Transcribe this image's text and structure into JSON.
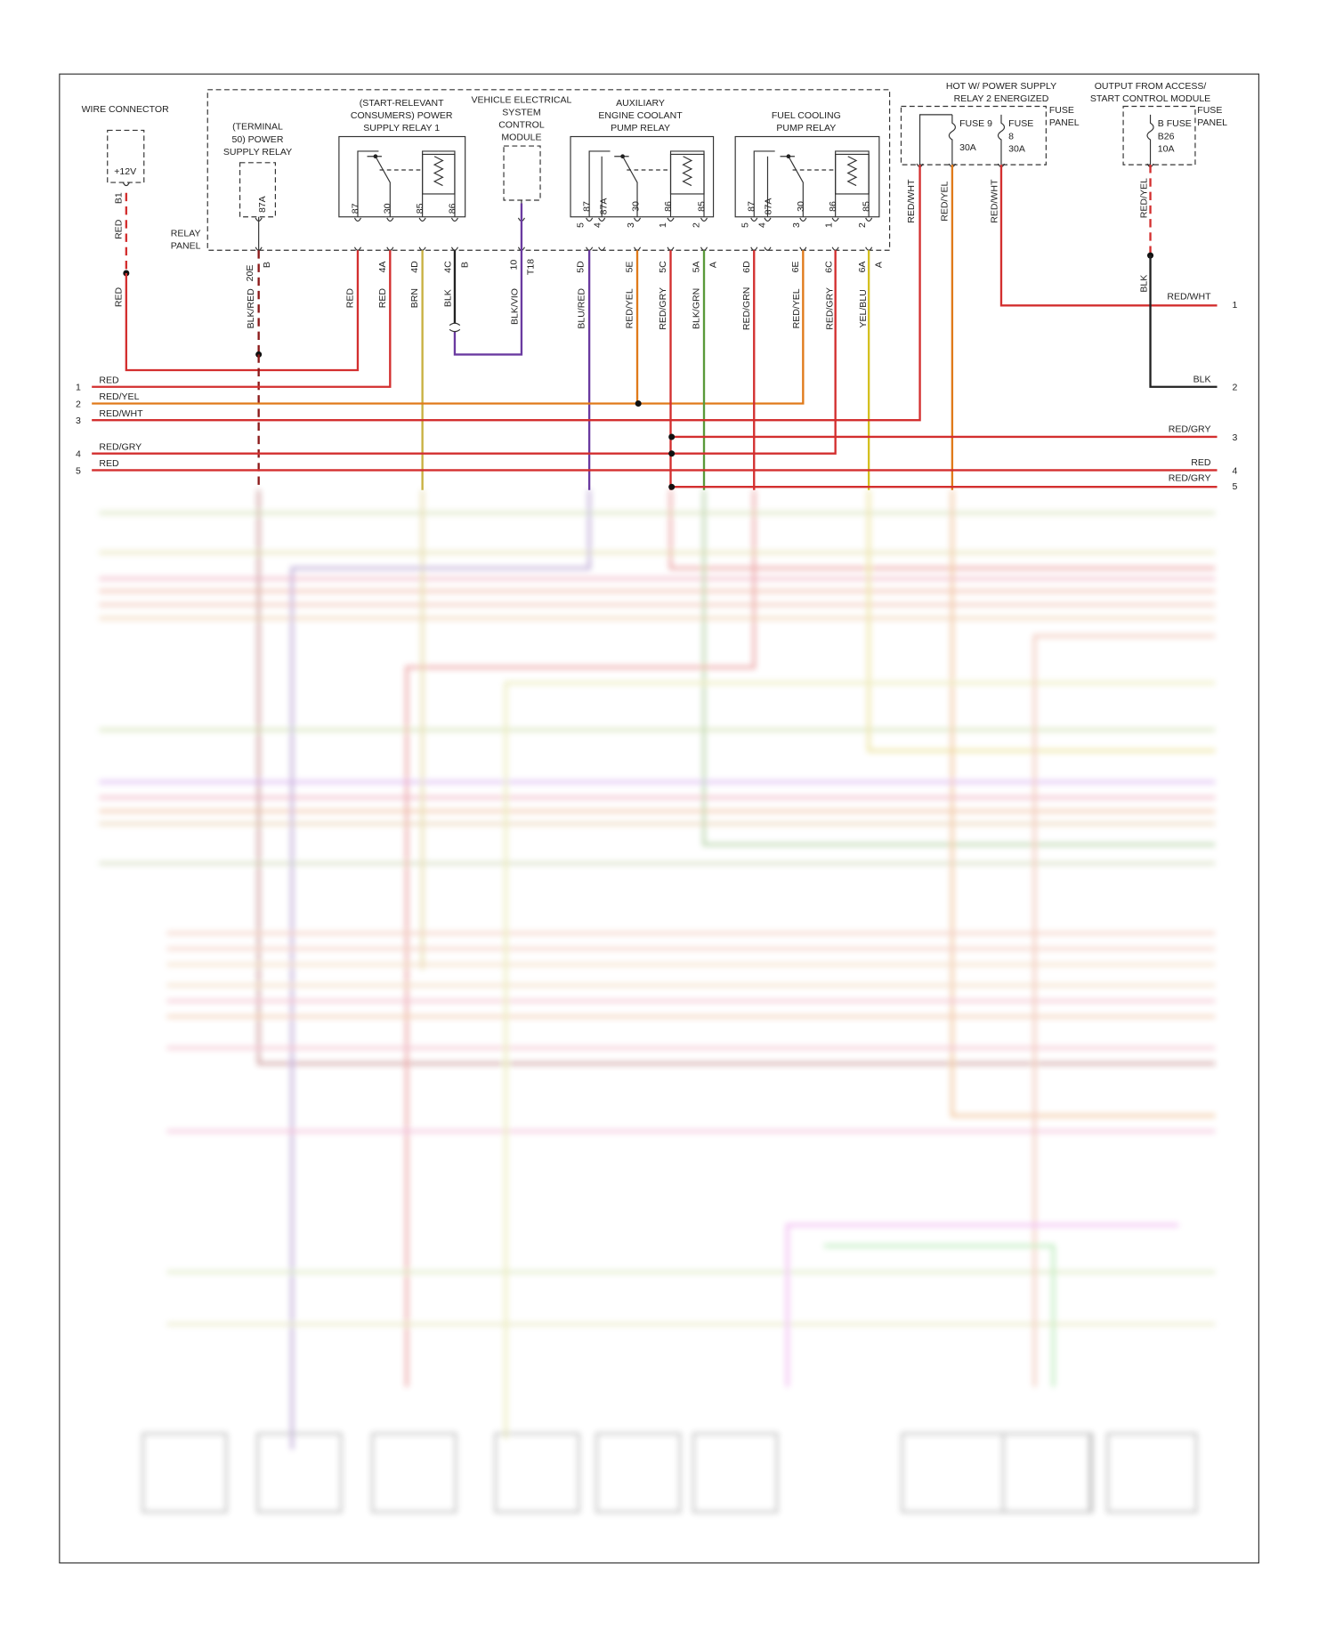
{
  "wire_connector": {
    "title": "WIRE CONNECTOR",
    "label": "+12V",
    "pin": "B1",
    "wires": [
      "RED",
      "RED"
    ]
  },
  "terminal_50_relay": {
    "title": [
      "(TERMINAL",
      "50) POWER",
      "SUPPLY RELAY"
    ],
    "pin": "87A",
    "connector": [
      "20E",
      "B"
    ],
    "wire": "BLK/RED"
  },
  "relay_panel": [
    "RELAY",
    "PANEL"
  ],
  "power_supply_relay_1": {
    "title": [
      "(START-RELEVANT",
      "CONSUMERS) POWER",
      "SUPPLY RELAY 1"
    ],
    "pins": [
      "87",
      "30",
      "85",
      "86"
    ],
    "connector": [
      "4A",
      "4D",
      "4C",
      "B"
    ],
    "wires": [
      "RED",
      "RED",
      "BRN",
      "BLK"
    ]
  },
  "vescm": {
    "title": [
      "VEHICLE ELECTRICAL",
      "SYSTEM",
      "CONTROL",
      "MODULE"
    ],
    "connector": [
      "10",
      "T18"
    ],
    "wire": "BLK/VIO"
  },
  "aux_coolant_relay": {
    "title": [
      "AUXILIARY",
      "ENGINE COOLANT",
      "PUMP RELAY"
    ],
    "pin_numbers": [
      "5",
      "4",
      "3",
      "1",
      "2"
    ],
    "pins": [
      "87",
      "87A",
      "30",
      "86",
      "85"
    ],
    "connector": [
      "5D",
      "5E",
      "5C",
      "5A",
      "A"
    ],
    "wires": [
      "BLU/RED",
      "RED/YEL",
      "RED/GRY",
      "BLK/GRN"
    ]
  },
  "fuel_cooling_relay": {
    "title": [
      "FUEL COOLING",
      "PUMP RELAY"
    ],
    "pin_numbers": [
      "5",
      "4",
      "3",
      "1",
      "2"
    ],
    "pins": [
      "87",
      "87A",
      "30",
      "86",
      "85"
    ],
    "connector": [
      "6D",
      "6E",
      "6C",
      "6A",
      "A"
    ],
    "wires": [
      "RED/GRN",
      "RED/YEL",
      "RED/GRY",
      "YEL/BLU"
    ]
  },
  "power_supply_relay_2": {
    "title": [
      "HOT W/ POWER SUPPLY",
      "RELAY 2 ENERGIZED"
    ],
    "panel": [
      "FUSE",
      "PANEL"
    ],
    "fuses": [
      {
        "name": [
          "FUSE 9"
        ],
        "rating": "30A"
      },
      {
        "name": [
          "FUSE",
          "8"
        ],
        "rating": "30A"
      }
    ],
    "wires": [
      "RED/WHT",
      "RED/YEL",
      "RED/WHT"
    ]
  },
  "access_module": {
    "title": [
      "OUTPUT FROM ACCESS/",
      "START CONTROL MODULE"
    ],
    "panel": [
      "FUSE",
      "PANEL"
    ],
    "fuse": {
      "name": [
        "B FUSE",
        "B26"
      ],
      "rating": "10A"
    },
    "wires": [
      "RED/YEL",
      "BLK"
    ]
  },
  "left_lines": [
    {
      "number": 1,
      "color": "RED"
    },
    {
      "number": 2,
      "color": "RED/YEL"
    },
    {
      "number": 3,
      "color": "RED/WHT"
    },
    {
      "number": 4,
      "color": "RED/GRY"
    },
    {
      "number": 5,
      "color": "RED"
    }
  ],
  "right_lines": [
    {
      "number": 1,
      "color": "RED/WHT"
    },
    {
      "number": 2,
      "color": "BLK"
    },
    {
      "number": 3,
      "color": "RED/GRY"
    },
    {
      "number": 4,
      "color": "RED"
    },
    {
      "number": 5,
      "color": "RED/GRY"
    }
  ]
}
